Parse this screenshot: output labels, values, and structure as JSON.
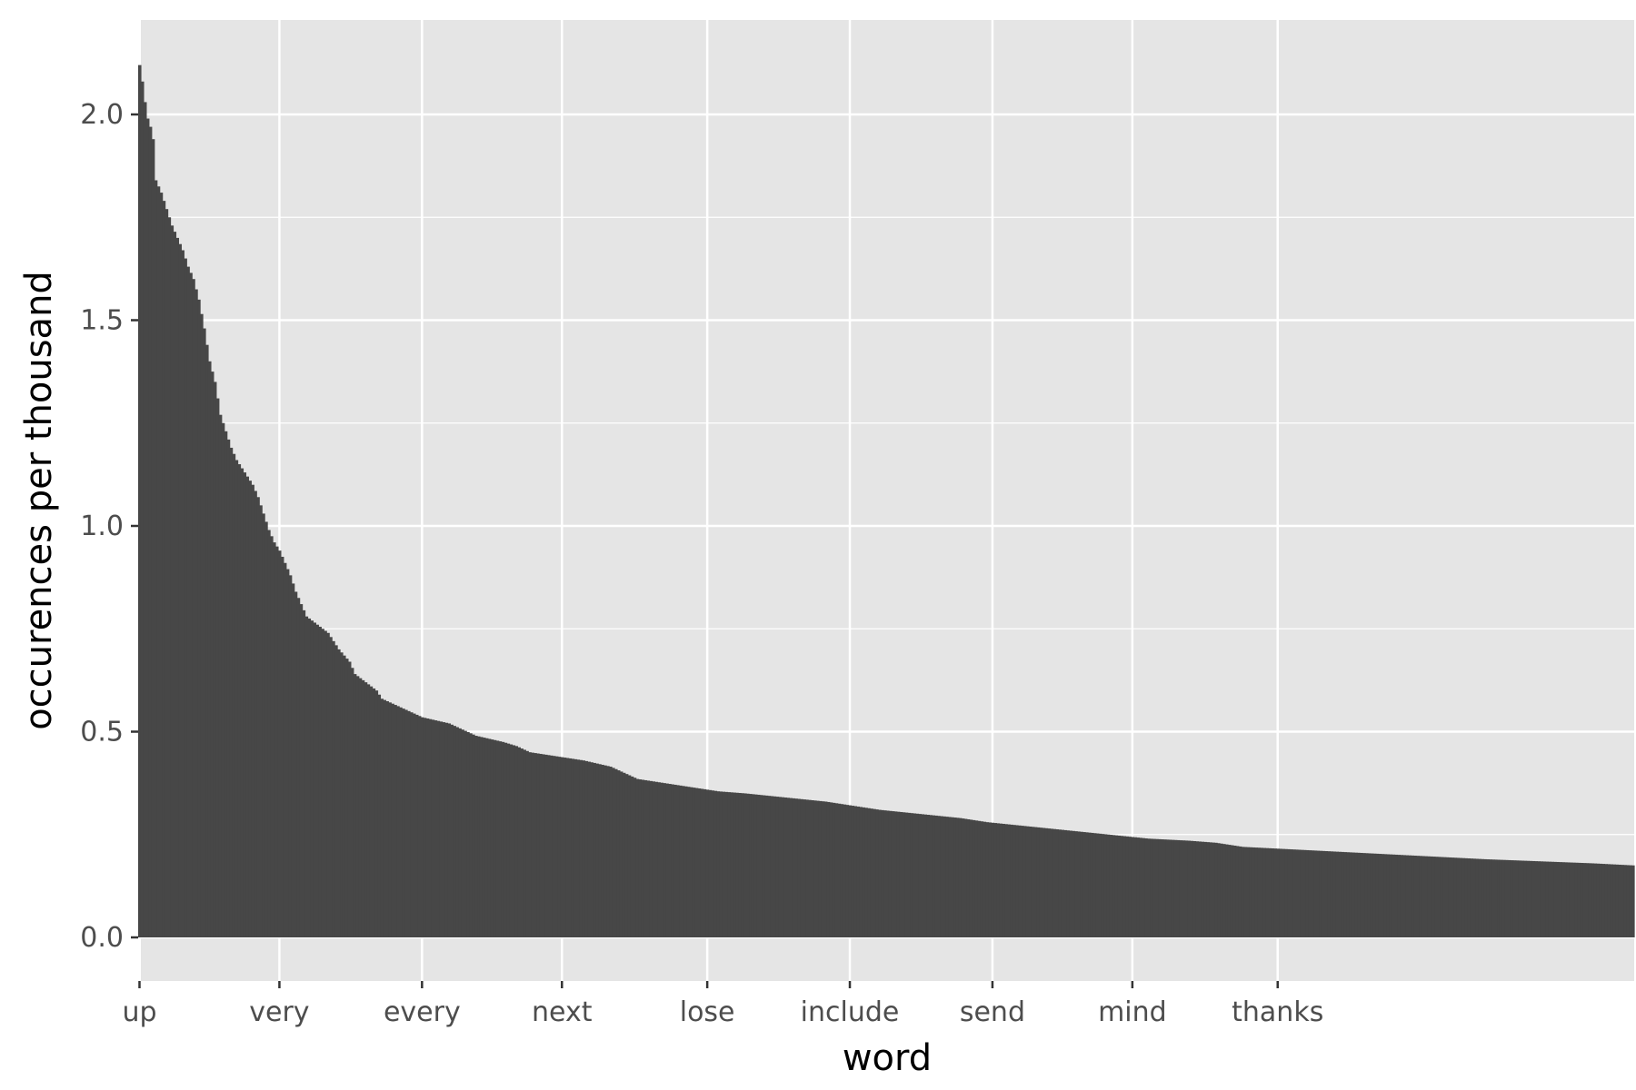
{
  "chart_data": {
    "type": "bar",
    "title": "",
    "xlabel": "word",
    "ylabel": "occurences per thousand",
    "ylim": [
      0,
      2.2
    ],
    "yticks": [
      0.0,
      0.5,
      1.0,
      1.5,
      2.0
    ],
    "ytick_labels": [
      "0.0",
      "0.5",
      "1.0",
      "1.5",
      "2.0"
    ],
    "grid": true,
    "legend": "none",
    "bar_color": "#474747",
    "panel_color": "#e5e5e5",
    "grid_color": "#ffffff",
    "category_labels": [
      "up",
      "very",
      "every",
      "next",
      "lose",
      "include",
      "send",
      "mind",
      "thanks"
    ],
    "profile": [
      [
        0,
        2.12
      ],
      [
        1,
        2.08
      ],
      [
        2,
        2.03
      ],
      [
        3,
        1.99
      ],
      [
        4,
        1.97
      ],
      [
        5,
        1.94
      ],
      [
        6,
        1.84
      ],
      [
        8,
        1.81
      ],
      [
        10,
        1.77
      ],
      [
        12,
        1.73
      ],
      [
        14,
        1.7
      ],
      [
        16,
        1.67
      ],
      [
        18,
        1.63
      ],
      [
        20,
        1.6
      ],
      [
        22,
        1.55
      ],
      [
        24,
        1.48
      ],
      [
        26,
        1.4
      ],
      [
        28,
        1.35
      ],
      [
        30,
        1.27
      ],
      [
        32,
        1.23
      ],
      [
        34,
        1.19
      ],
      [
        36,
        1.16
      ],
      [
        38,
        1.14
      ],
      [
        40,
        1.12
      ],
      [
        42,
        1.1
      ],
      [
        44,
        1.07
      ],
      [
        46,
        1.03
      ],
      [
        48,
        0.99
      ],
      [
        50,
        0.96
      ],
      [
        52,
        0.94
      ],
      [
        54,
        0.91
      ],
      [
        56,
        0.88
      ],
      [
        58,
        0.84
      ],
      [
        60,
        0.81
      ],
      [
        62,
        0.78
      ],
      [
        64,
        0.77
      ],
      [
        66,
        0.76
      ],
      [
        70,
        0.74
      ],
      [
        74,
        0.7
      ],
      [
        78,
        0.67
      ],
      [
        80,
        0.64
      ],
      [
        84,
        0.62
      ],
      [
        88,
        0.6
      ],
      [
        90,
        0.58
      ],
      [
        95,
        0.565
      ],
      [
        100,
        0.55
      ],
      [
        105,
        0.535
      ],
      [
        115,
        0.52
      ],
      [
        120,
        0.505
      ],
      [
        125,
        0.49
      ],
      [
        135,
        0.475
      ],
      [
        140,
        0.465
      ],
      [
        145,
        0.45
      ],
      [
        155,
        0.44
      ],
      [
        165,
        0.43
      ],
      [
        175,
        0.415
      ],
      [
        180,
        0.4
      ],
      [
        185,
        0.385
      ],
      [
        195,
        0.375
      ],
      [
        205,
        0.365
      ],
      [
        215,
        0.355
      ],
      [
        225,
        0.35
      ],
      [
        240,
        0.34
      ],
      [
        255,
        0.33
      ],
      [
        265,
        0.32
      ],
      [
        275,
        0.31
      ],
      [
        290,
        0.3
      ],
      [
        305,
        0.29
      ],
      [
        315,
        0.28
      ],
      [
        330,
        0.27
      ],
      [
        345,
        0.26
      ],
      [
        360,
        0.25
      ],
      [
        375,
        0.24
      ],
      [
        390,
        0.235
      ],
      [
        400,
        0.23
      ],
      [
        410,
        0.22
      ],
      [
        425,
        0.215
      ],
      [
        440,
        0.21
      ],
      [
        455,
        0.205
      ],
      [
        470,
        0.2
      ],
      [
        485,
        0.195
      ],
      [
        500,
        0.19
      ],
      [
        520,
        0.185
      ],
      [
        540,
        0.18
      ],
      [
        555,
        0.175
      ]
    ],
    "n_words": 556
  }
}
